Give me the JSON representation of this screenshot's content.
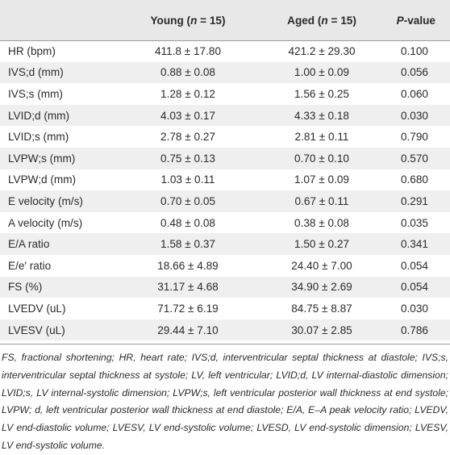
{
  "header": {
    "col0": "",
    "young_label": "Young (",
    "young_n": "n",
    "young_rest": " = 15)",
    "aged_label": "Aged (",
    "aged_n": "n",
    "aged_rest": " = 15)",
    "p_italic": "P",
    "p_rest": "-value"
  },
  "rows": [
    {
      "param": "HR (bpm)",
      "young": "411.8 ± 17.80",
      "aged": "421.2 ± 29.30",
      "p": "0.100"
    },
    {
      "param": "IVS;d (mm)",
      "young": "0.88 ± 0.08",
      "aged": "1.00 ± 0.09",
      "p": "0.056"
    },
    {
      "param": "IVS;s (mm)",
      "young": "1.28 ± 0.12",
      "aged": "1.56 ± 0.25",
      "p": "0.060"
    },
    {
      "param": "LVID;d (mm)",
      "young": "4.03 ± 0.17",
      "aged": "4.33 ± 0.18",
      "p": "0.030"
    },
    {
      "param": "LVID;s (mm)",
      "young": "2.78 ± 0.27",
      "aged": "2.81 ± 0.11",
      "p": "0.790"
    },
    {
      "param": "LVPW;s (mm)",
      "young": "0.75 ± 0.13",
      "aged": "0.70 ± 0.10",
      "p": "0.570"
    },
    {
      "param": "LVPW;d (mm)",
      "young": "1.03 ± 0.11",
      "aged": "1.07 ± 0.09",
      "p": "0.680"
    },
    {
      "param": "E velocity (m/s)",
      "young": "0.70 ± 0.05",
      "aged": "0.67 ± 0.11",
      "p": "0.291"
    },
    {
      "param": "A velocity (m/s)",
      "young": "0.48 ± 0.08",
      "aged": "0.38 ± 0.08",
      "p": "0.035"
    },
    {
      "param": "E/A ratio",
      "young": "1.58 ± 0.37",
      "aged": "1.50 ± 0.27",
      "p": "0.341"
    },
    {
      "param": "E/e′ ratio",
      "young": "18.66 ± 4.89",
      "aged": "24.40 ± 7.00",
      "p": "0.054"
    },
    {
      "param": "FS (%)",
      "young": "31.17 ± 4.68",
      "aged": "34.90 ± 2.69",
      "p": "0.054"
    },
    {
      "param": "LVEDV (uL)",
      "young": "71.72 ± 6.19",
      "aged": "84.75 ± 8.87",
      "p": "0.030"
    },
    {
      "param": "LVESV (uL)",
      "young": "29.44 ± 7.10",
      "aged": "30.07 ± 2.85",
      "p": "0.786"
    }
  ],
  "footnote": "FS, fractional shortening; HR, heart rate; IVS;d, interventricular septal thickness at diastole; IVS;s, interventricular septal thickness at systole; LV, left ventricular; LVID;d, LV internal-diastolic dimension; LVID;s, LV internal-systolic dimension; LVPW;s, left ventricular posterior wall thickness at end systole; LVPW; d, left ventricular posterior wall thickness at end diastole; E/A, E–A peak velocity ratio; LVEDV, LV end-diastolic volume; LVESV, LV end-systolic volume; LVESD, LV end-systolic dimension; LVESV, LV end-systolic volume."
}
